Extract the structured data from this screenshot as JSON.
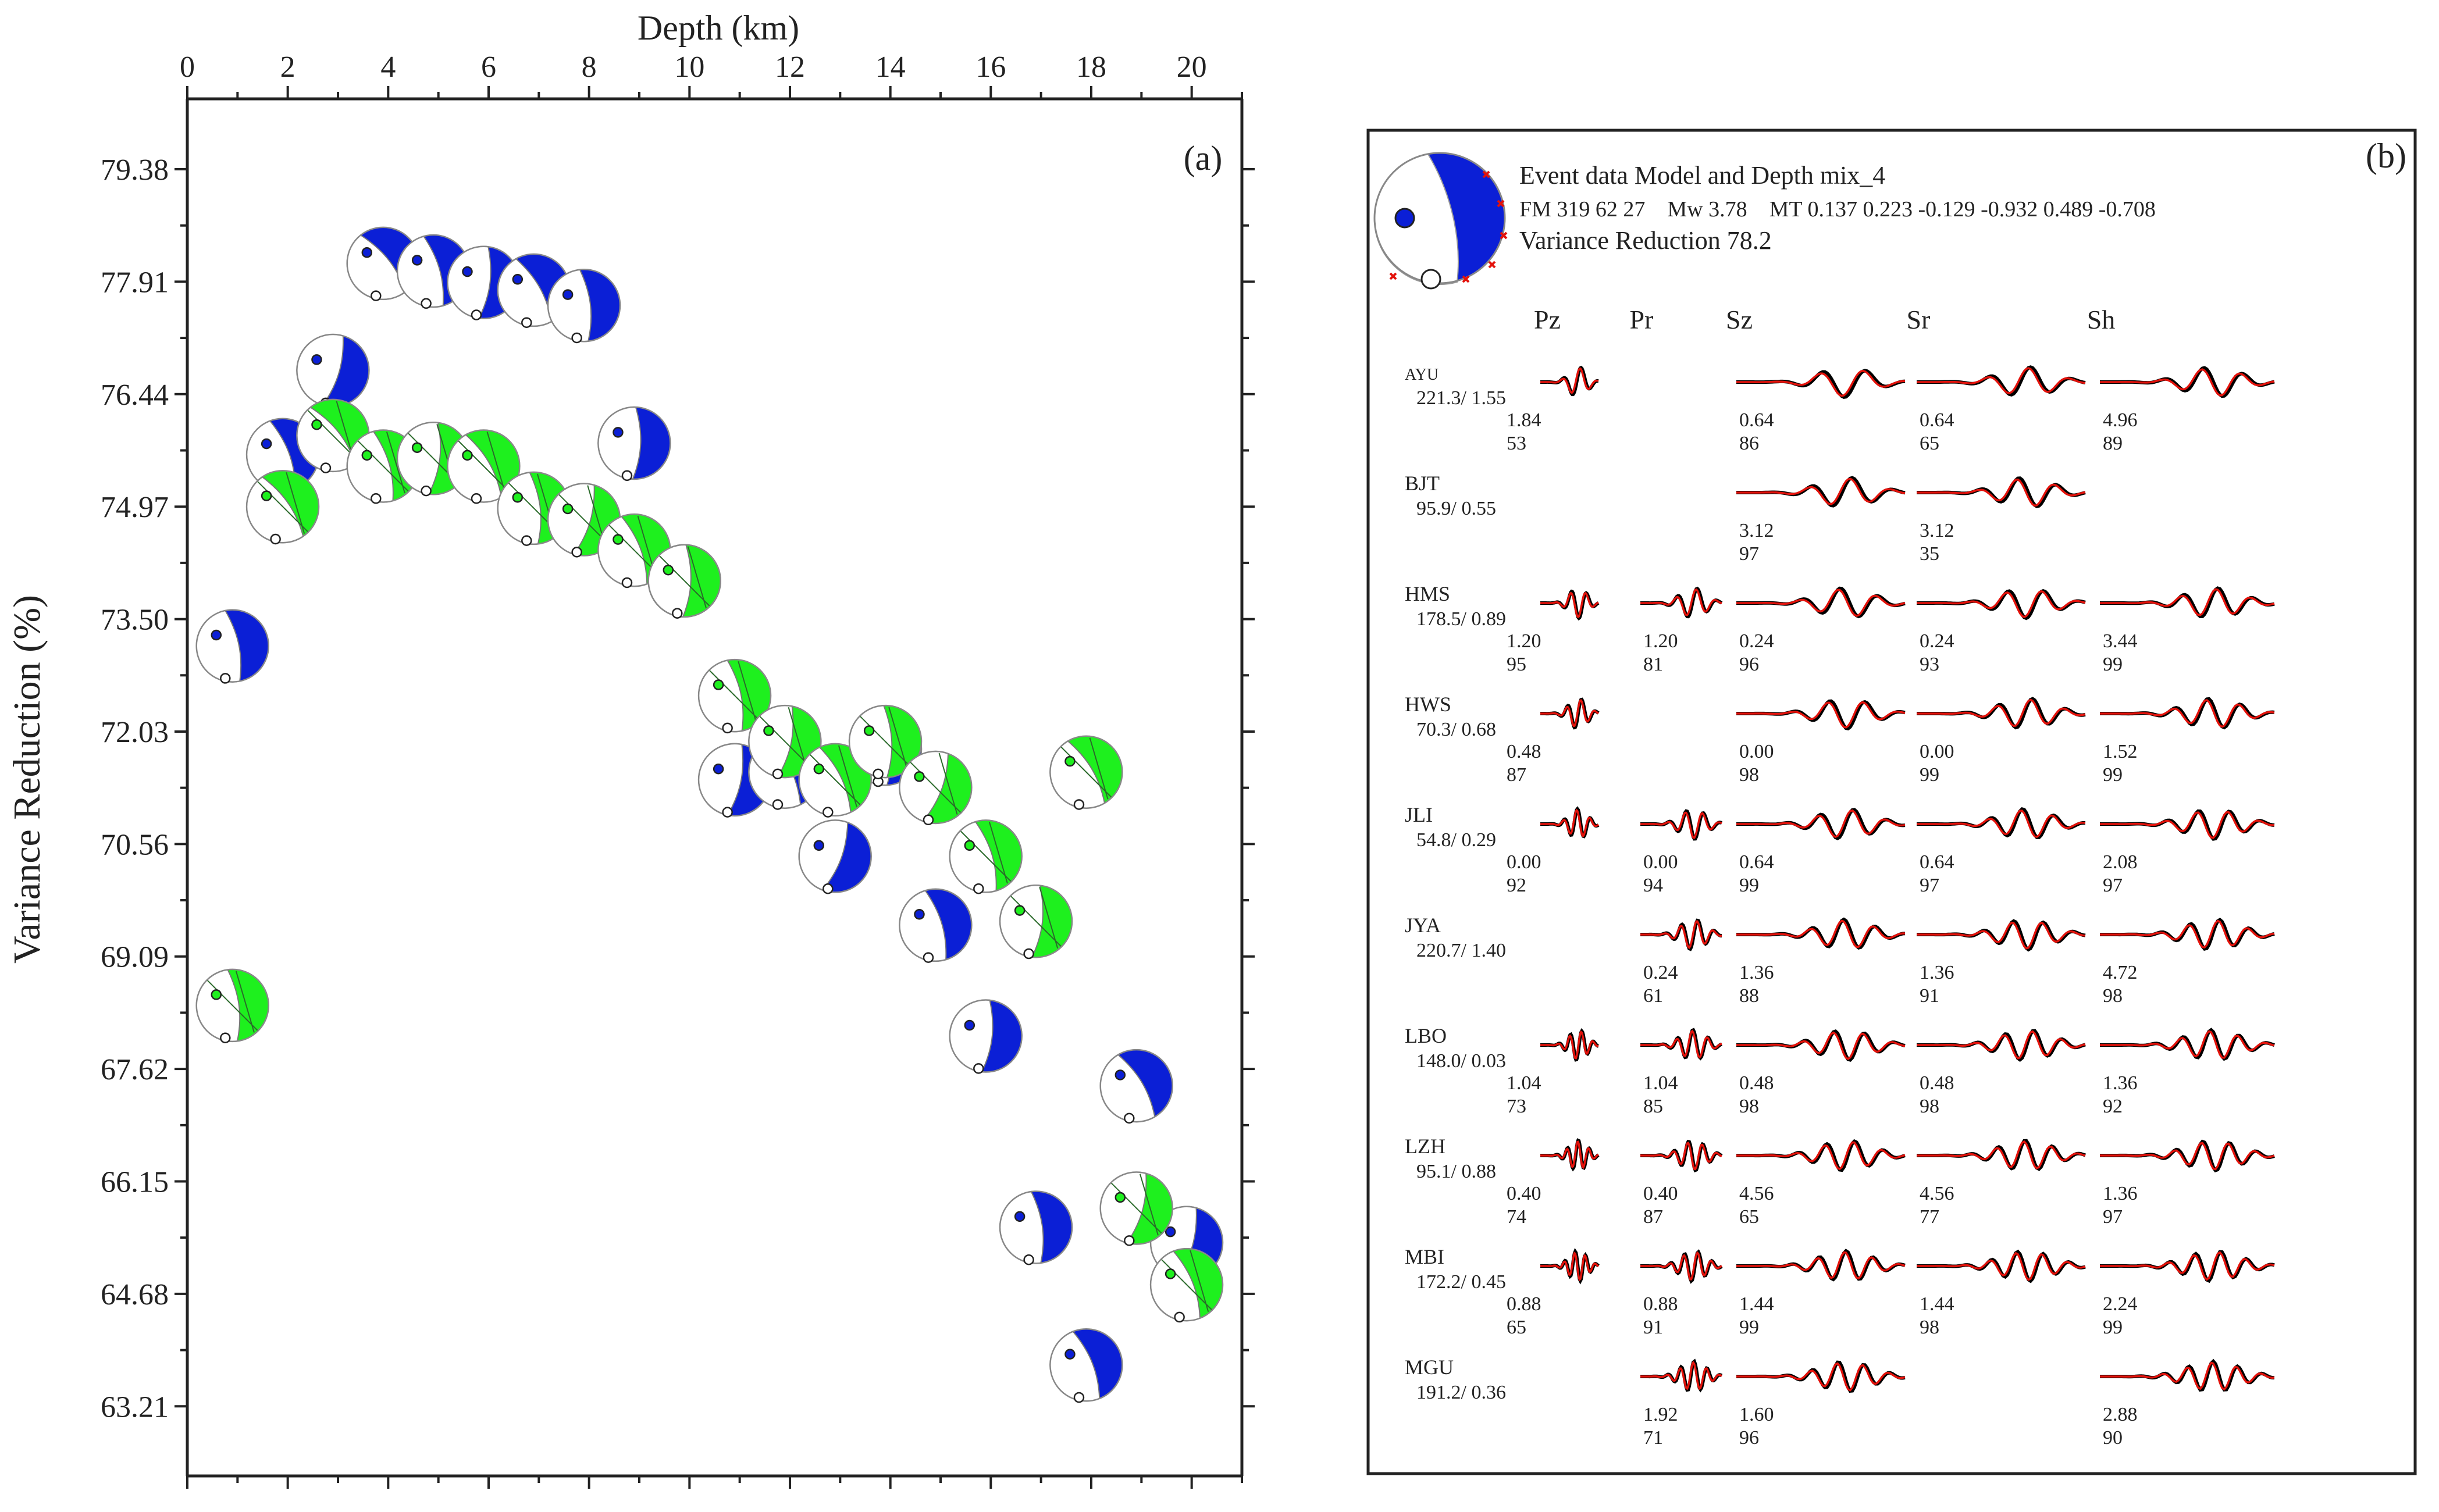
{
  "chart_data": [
    {
      "type": "scatter",
      "panel_label": "(a)",
      "xlabel": "Depth (km)",
      "ylabel": "Variance Reduction (%)",
      "xlim": [
        0,
        21
      ],
      "ylim": [
        62.3,
        80.3
      ],
      "x_ticks": [
        "0",
        "2",
        "4",
        "6",
        "8",
        "10",
        "12",
        "14",
        "16",
        "18",
        "20"
      ],
      "y_ticks": [
        "79.38",
        "77.91",
        "76.44",
        "74.97",
        "73.50",
        "72.03",
        "70.56",
        "69.09",
        "67.62",
        "66.15",
        "64.68",
        "63.21"
      ],
      "marker": "focal-mechanism beachball",
      "series": [
        {
          "name": "blue",
          "color": "#0b1fd6",
          "points": [
            {
              "x": 3.9,
              "y": 78.15
            },
            {
              "x": 4.9,
              "y": 78.05
            },
            {
              "x": 5.9,
              "y": 77.9
            },
            {
              "x": 6.9,
              "y": 77.8
            },
            {
              "x": 7.9,
              "y": 77.6
            },
            {
              "x": 2.9,
              "y": 76.75
            },
            {
              "x": 1.9,
              "y": 75.65
            },
            {
              "x": 8.9,
              "y": 75.8
            },
            {
              "x": 9.9,
              "y": 74.0
            },
            {
              "x": 0.9,
              "y": 73.15
            },
            {
              "x": 10.9,
              "y": 71.4
            },
            {
              "x": 11.9,
              "y": 71.5
            },
            {
              "x": 13.9,
              "y": 71.8
            },
            {
              "x": 12.9,
              "y": 70.4
            },
            {
              "x": 14.9,
              "y": 69.5
            },
            {
              "x": 15.9,
              "y": 68.05
            },
            {
              "x": 18.9,
              "y": 67.4
            },
            {
              "x": 16.9,
              "y": 65.55
            },
            {
              "x": 19.9,
              "y": 65.35
            },
            {
              "x": 17.9,
              "y": 63.75
            }
          ]
        },
        {
          "name": "green",
          "color": "#1ef01e",
          "points": [
            {
              "x": 2.9,
              "y": 75.9
            },
            {
              "x": 3.9,
              "y": 75.5
            },
            {
              "x": 4.9,
              "y": 75.6
            },
            {
              "x": 5.9,
              "y": 75.5
            },
            {
              "x": 6.9,
              "y": 74.95
            },
            {
              "x": 7.9,
              "y": 74.8
            },
            {
              "x": 8.9,
              "y": 74.4
            },
            {
              "x": 9.9,
              "y": 74.0
            },
            {
              "x": 1.9,
              "y": 74.97
            },
            {
              "x": 10.9,
              "y": 72.5
            },
            {
              "x": 11.9,
              "y": 71.9
            },
            {
              "x": 12.9,
              "y": 71.4
            },
            {
              "x": 13.9,
              "y": 71.9
            },
            {
              "x": 14.9,
              "y": 71.3
            },
            {
              "x": 15.9,
              "y": 70.4
            },
            {
              "x": 16.9,
              "y": 69.55
            },
            {
              "x": 17.9,
              "y": 71.5
            },
            {
              "x": 0.9,
              "y": 68.45
            },
            {
              "x": 18.9,
              "y": 65.8
            },
            {
              "x": 19.9,
              "y": 64.8
            }
          ]
        }
      ]
    },
    {
      "type": "table",
      "panel_label": "(b)",
      "title": "Event data Model and Depth mix_4",
      "fm_line": "FM 319 62 27    Mw 3.78    MT 0.137 0.223 -0.129 -0.932 0.489 -0.708",
      "vr_line": "Variance Reduction 78.2",
      "columns": [
        "Pz",
        "Pr",
        "Sz",
        "Sr",
        "Sh"
      ],
      "stations": [
        {
          "name": "AYU",
          "info": "221.3/ 1.55",
          "cells": [
            {
              "s": "1.84",
              "c": "53"
            },
            null,
            {
              "s": "0.64",
              "c": "86"
            },
            {
              "s": "0.64",
              "c": "65"
            },
            {
              "s": "4.96",
              "c": "89"
            }
          ]
        },
        {
          "name": "BJT",
          "info": "95.9/ 0.55",
          "cells": [
            null,
            null,
            {
              "s": "3.12",
              "c": "97"
            },
            {
              "s": "3.12",
              "c": "35"
            },
            null
          ]
        },
        {
          "name": "HMS",
          "info": "178.5/ 0.89",
          "cells": [
            {
              "s": "1.20",
              "c": "95"
            },
            {
              "s": "1.20",
              "c": "81"
            },
            {
              "s": "0.24",
              "c": "96"
            },
            {
              "s": "0.24",
              "c": "93"
            },
            {
              "s": "3.44",
              "c": "99"
            }
          ]
        },
        {
          "name": "HWS",
          "info": "70.3/ 0.68",
          "cells": [
            {
              "s": "0.48",
              "c": "87"
            },
            null,
            {
              "s": "0.00",
              "c": "98"
            },
            {
              "s": "0.00",
              "c": "99"
            },
            {
              "s": "1.52",
              "c": "99"
            }
          ]
        },
        {
          "name": "JLI",
          "info": "54.8/ 0.29",
          "cells": [
            {
              "s": "0.00",
              "c": "92"
            },
            {
              "s": "0.00",
              "c": "94"
            },
            {
              "s": "0.64",
              "c": "99"
            },
            {
              "s": "0.64",
              "c": "97"
            },
            {
              "s": "2.08",
              "c": "97"
            }
          ]
        },
        {
          "name": "JYA",
          "info": "220.7/ 1.40",
          "cells": [
            null,
            {
              "s": "0.24",
              "c": "61"
            },
            {
              "s": "1.36",
              "c": "88"
            },
            {
              "s": "1.36",
              "c": "91"
            },
            {
              "s": "4.72",
              "c": "98"
            }
          ]
        },
        {
          "name": "LBO",
          "info": "148.0/ 0.03",
          "cells": [
            {
              "s": "1.04",
              "c": "73"
            },
            {
              "s": "1.04",
              "c": "85"
            },
            {
              "s": "0.48",
              "c": "98"
            },
            {
              "s": "0.48",
              "c": "98"
            },
            {
              "s": "1.36",
              "c": "92"
            }
          ]
        },
        {
          "name": "LZH",
          "info": "95.1/ 0.88",
          "cells": [
            {
              "s": "0.40",
              "c": "74"
            },
            {
              "s": "0.40",
              "c": "87"
            },
            {
              "s": "4.56",
              "c": "65"
            },
            {
              "s": "4.56",
              "c": "77"
            },
            {
              "s": "1.36",
              "c": "97"
            }
          ]
        },
        {
          "name": "MBI",
          "info": "172.2/ 0.45",
          "cells": [
            {
              "s": "0.88",
              "c": "65"
            },
            {
              "s": "0.88",
              "c": "91"
            },
            {
              "s": "1.44",
              "c": "99"
            },
            {
              "s": "1.44",
              "c": "98"
            },
            {
              "s": "2.24",
              "c": "99"
            }
          ]
        },
        {
          "name": "MGU",
          "info": "191.2/ 0.36",
          "cells": [
            null,
            {
              "s": "1.92",
              "c": "71"
            },
            {
              "s": "1.60",
              "c": "96"
            },
            null,
            {
              "s": "2.88",
              "c": "90"
            }
          ]
        }
      ],
      "trace_colors": {
        "observed": "#000000",
        "synthetic": "#e3120b"
      }
    }
  ]
}
